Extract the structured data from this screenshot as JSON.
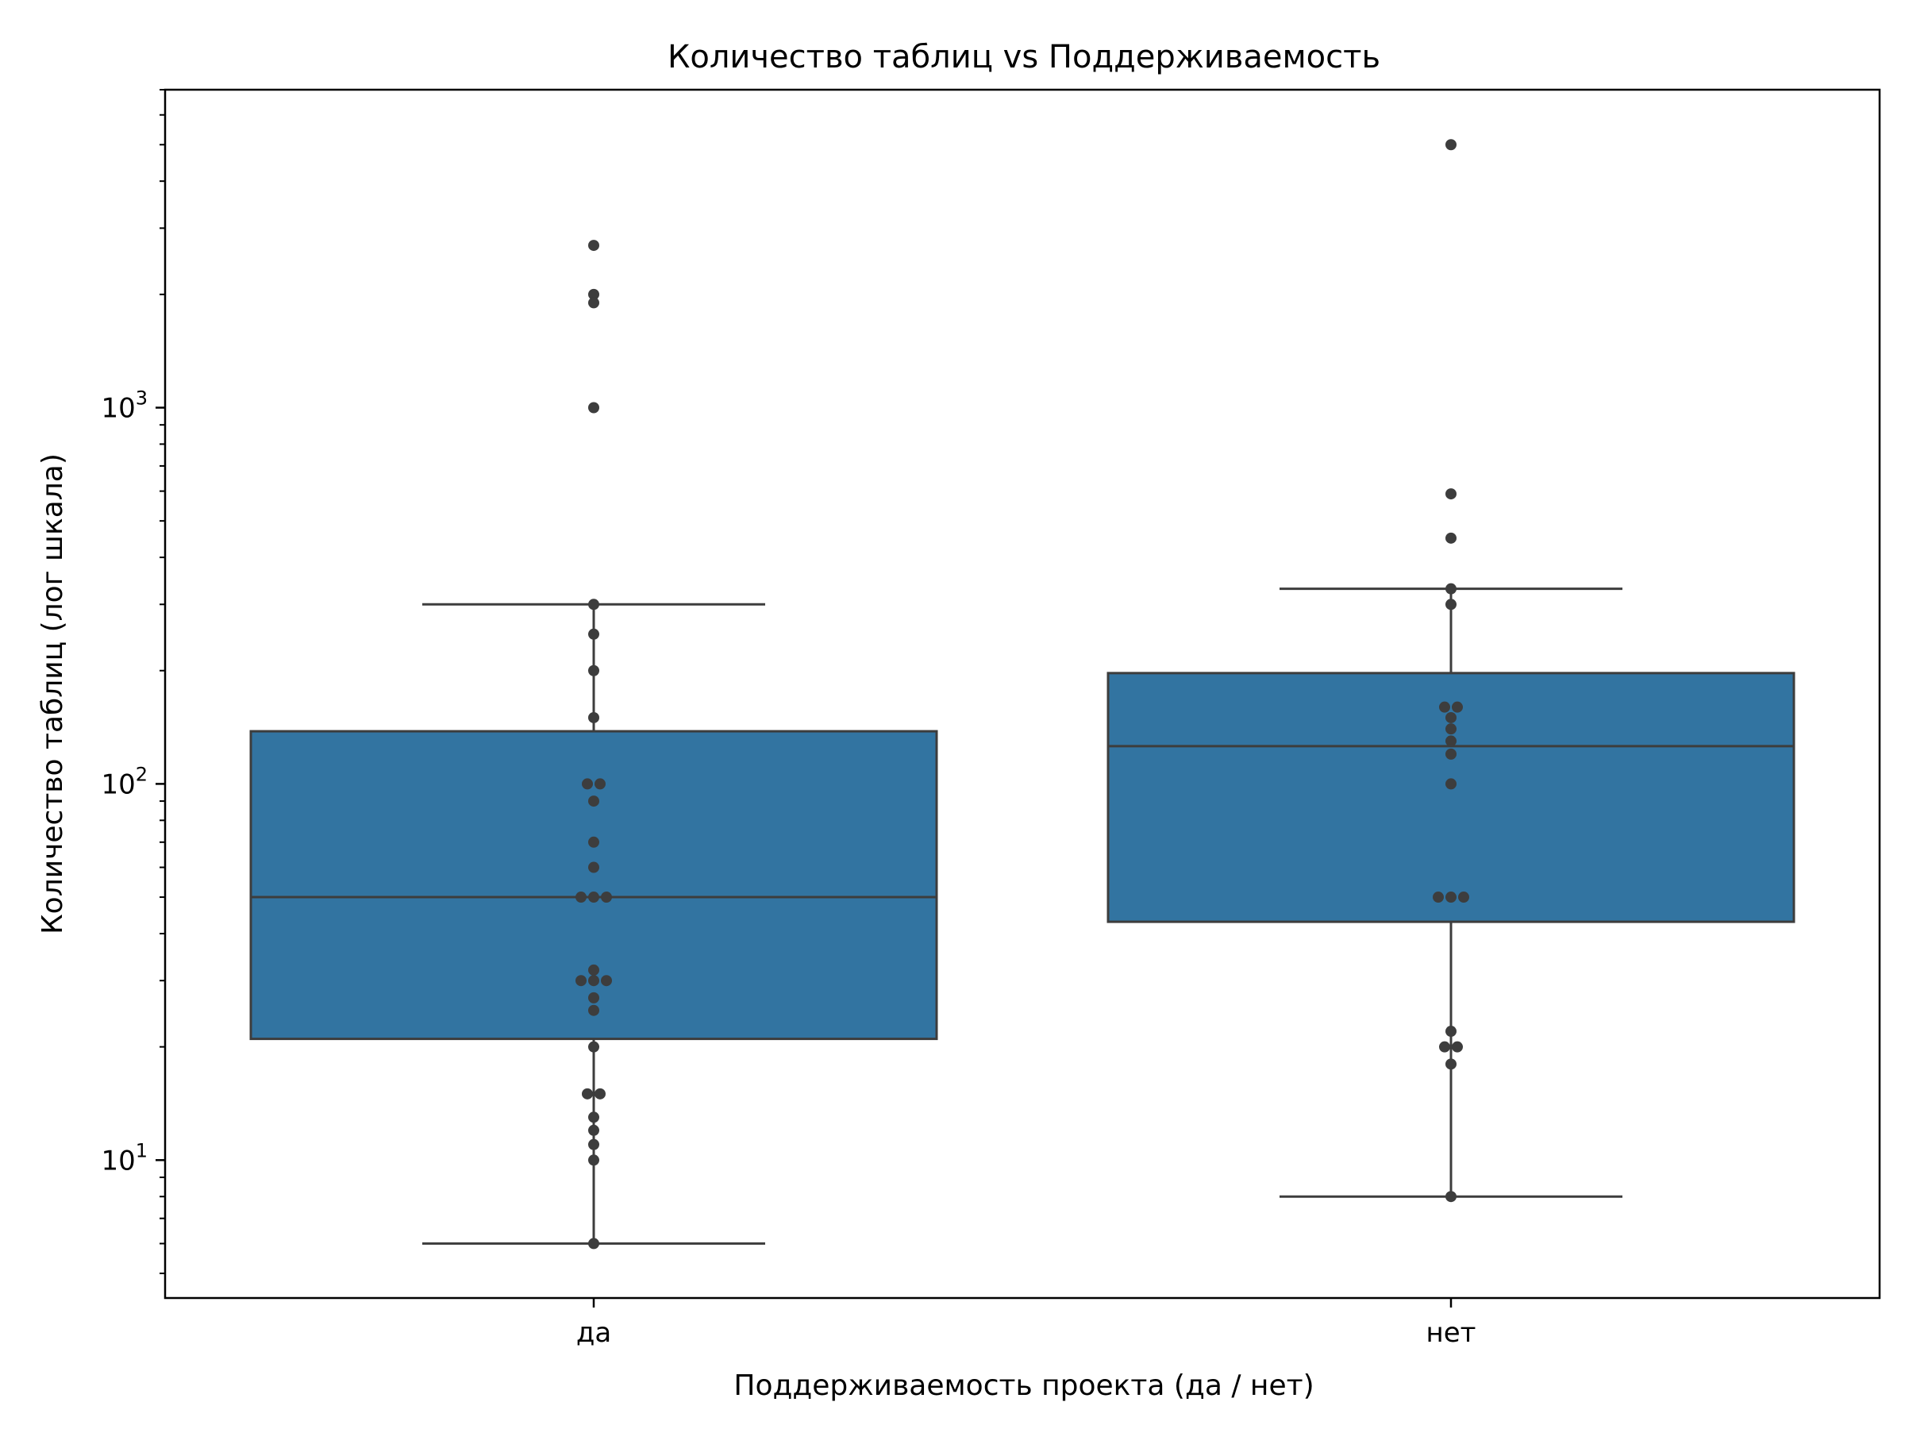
{
  "chart_data": {
    "type": "box",
    "title": "Количество таблиц vs Поддерживаемость",
    "xlabel": "Поддерживаемость проекта (да / нет)",
    "ylabel": "Количество таблиц (лог шкала)",
    "yscale": "log",
    "ylim": [
      4.3,
      7000
    ],
    "yticks": [
      {
        "base": "10",
        "exp": "1",
        "value": 10
      },
      {
        "base": "10",
        "exp": "2",
        "value": 100
      },
      {
        "base": "10",
        "exp": "3",
        "value": 1000
      }
    ],
    "grid": false,
    "colors": {
      "box_fill": "#3274a1",
      "box_edge": "#3d3d3d",
      "point": "#3d3d3d"
    },
    "categories": [
      "да",
      "нет"
    ],
    "boxes": [
      {
        "category": "да",
        "whisker_low": 6,
        "q1": 21,
        "median": 50,
        "q3": 138,
        "whisker_high": 300,
        "points": [
          2700,
          2000,
          1900,
          1000,
          300,
          250,
          200,
          150,
          100,
          100,
          90,
          70,
          60,
          50,
          50,
          50,
          32,
          30,
          30,
          30,
          27,
          25,
          20,
          15,
          15,
          13,
          12,
          11,
          10,
          6
        ]
      },
      {
        "category": "нет",
        "whisker_low": 8,
        "q1": 43,
        "median": 126,
        "q3": 197,
        "whisker_high": 330,
        "points": [
          5000,
          590,
          450,
          330,
          300,
          160,
          160,
          150,
          140,
          130,
          120,
          100,
          50,
          50,
          50,
          22,
          20,
          20,
          18,
          8
        ]
      }
    ]
  }
}
